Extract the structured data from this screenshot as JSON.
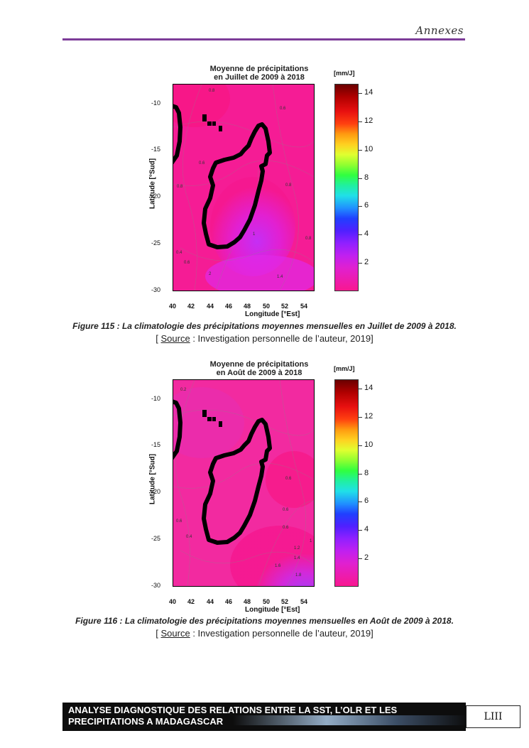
{
  "header": {
    "section": "Annexes"
  },
  "figures": [
    {
      "map": {
        "title_line1": "Moyenne de précipitations",
        "title_line2": "en Juillet de 2009 à 2018",
        "ylabel": "Latitude [°Sud]",
        "xlabel": "Longitude [°Est]",
        "units": "[mm/J]",
        "yticks": [
          "-10",
          "-15",
          "-20",
          "-25",
          "-30"
        ],
        "xticks": [
          "40",
          "42",
          "44",
          "46",
          "48",
          "50",
          "52",
          "54"
        ],
        "colorbar_ticks": [
          "14",
          "12",
          "10",
          "8",
          "6",
          "4",
          "2"
        ],
        "contour_labels": [
          "0.6",
          "0.8",
          "0.8",
          "0.8",
          "0.6",
          "0.4",
          "0.6",
          "0.8",
          "1.4",
          "2",
          "1"
        ]
      },
      "caption": "Figure 115 : La climatologie des précipitations moyennes mensuelles en Juillet de 2009 à 2018.",
      "source_open": "[ ",
      "source_label": "Source",
      "source_rest": " : Investigation personnelle de l’auteur, 2019]"
    },
    {
      "map": {
        "title_line1": "Moyenne de précipitations",
        "title_line2": "en Août de 2009 à 2018",
        "ylabel": "Latitude [°Sud]",
        "xlabel": "Longitude [°Est]",
        "units": "[mm/J]",
        "yticks": [
          "-10",
          "-15",
          "-20",
          "-25",
          "-30"
        ],
        "xticks": [
          "40",
          "42",
          "44",
          "46",
          "48",
          "50",
          "52",
          "54"
        ],
        "colorbar_ticks": [
          "14",
          "12",
          "10",
          "8",
          "6",
          "4",
          "2"
        ],
        "contour_labels": [
          "0.2",
          "0.6",
          "0.6",
          "0.6",
          "0.4",
          "0.6",
          "1.2",
          "1.4",
          "1.6",
          "1.8",
          "1"
        ]
      },
      "caption": "Figure 116 : La climatologie des précipitations moyennes mensuelles en Août de 2009 à 2018.",
      "source_open": "[ ",
      "source_label": "Source",
      "source_rest": " : Investigation personnelle de l’auteur, 2019]"
    }
  ],
  "footer": {
    "line1": "ANALYSE DIAGNOSTIQUE DES RELATIONS ENTRE LA SST, L’OLR ET LES",
    "line2": "PRECIPITATIONS A MADAGASCAR",
    "page_number": "LIII"
  },
  "colors": {
    "header_rule": "#7d3c98",
    "map_background": "#f020a0",
    "coastline": "#000000"
  }
}
